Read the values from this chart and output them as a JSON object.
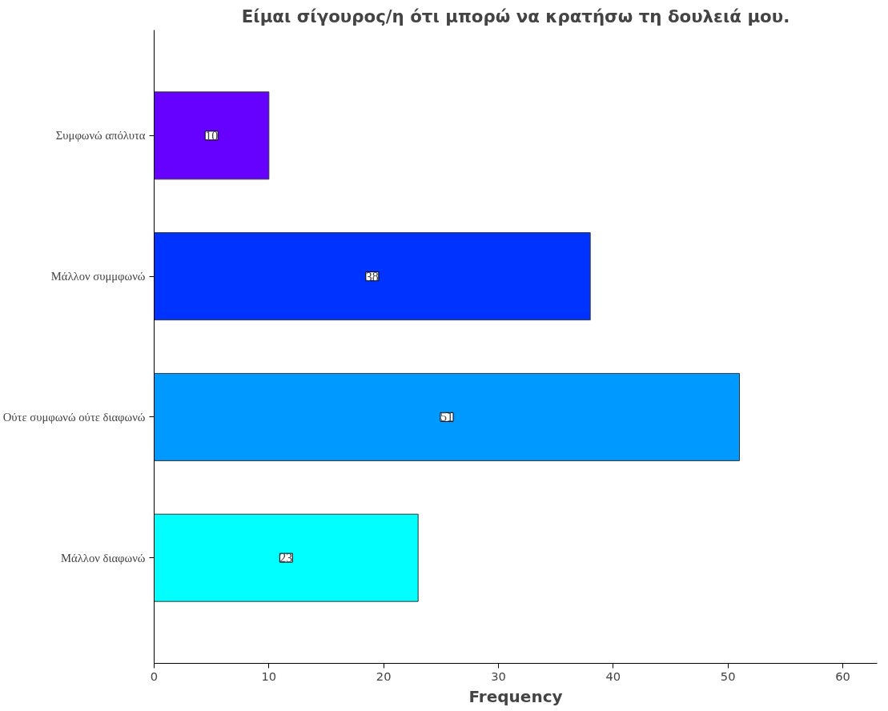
{
  "chart_data": {
    "type": "bar",
    "orientation": "horizontal",
    "title": "Είμαι σίγουρος/η ότι μπορώ να κρατήσω τη δουλειά μου.",
    "xlabel": "Frequency",
    "categories": [
      "Συμφωνώ απόλυτα",
      "Μάλλον συμμφωνώ",
      "Ούτε συμφωνώ ούτε διαφωνώ",
      "Μάλλον διαφωνώ"
    ],
    "values": [
      10,
      38,
      51,
      23
    ],
    "colors": [
      "#6600ff",
      "#0033ff",
      "#0099ff",
      "#00ffff"
    ],
    "xlim": [
      0,
      63
    ],
    "xticks": [
      0,
      10,
      20,
      30,
      40,
      50,
      60
    ],
    "data_labels": true
  }
}
